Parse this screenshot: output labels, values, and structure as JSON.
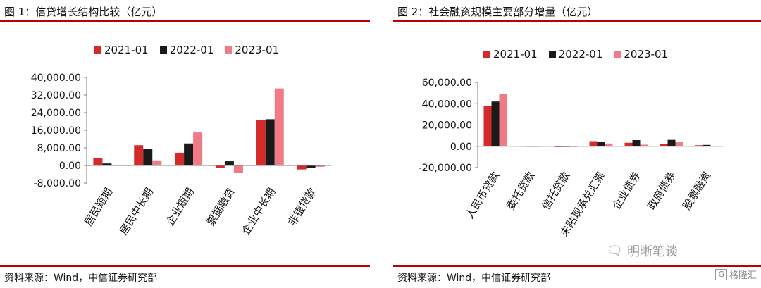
{
  "left_panel": {
    "title": "图 1：信贷增长结构比较（亿元）",
    "source": "资料来源：Wind，中信证券研究部"
  },
  "right_panel": {
    "title": "图 2：社会融资规模主要部分增量（亿元）",
    "source": "资料来源：Wind，中信证券研究部"
  },
  "watermark": {
    "text": "明晰笔谈",
    "icon": "wechat-icon"
  },
  "corner_logo": {
    "text": "格隆汇",
    "icon": "gelonghui-logo-icon"
  },
  "colors": {
    "s2021": "#d42a2a",
    "s2022": "#1a1a1a",
    "s2023": "#f07a86",
    "rule": "#c00000",
    "axis": "#7f7f7f"
  },
  "chart_data": [
    {
      "type": "bar",
      "categories": [
        "居民短期",
        "居民中长期",
        "企业短期",
        "票据融资",
        "企业中长期",
        "非银贷款"
      ],
      "series": [
        {
          "name": "2021-01",
          "values": [
            3400,
            9200,
            5800,
            -1200,
            20500,
            -1800
          ]
        },
        {
          "name": "2022-01",
          "values": [
            900,
            7400,
            10000,
            1900,
            21000,
            -1200
          ]
        },
        {
          "name": "2023-01",
          "values": [
            300,
            2300,
            15000,
            -3500,
            35000,
            -600
          ]
        }
      ],
      "yticks": [
        "40,000.00",
        "32,000.00",
        "24,000.00",
        "16,000.00",
        "8,000.00",
        "0.00",
        "-8,000.00"
      ],
      "ylim": [
        -8000,
        40000
      ],
      "legend_position": "top"
    },
    {
      "type": "bar",
      "categories": [
        "人民币贷款",
        "委托贷款",
        "信托贷款",
        "未贴现承兑汇票",
        "企业债券",
        "政府债券",
        "股票融资"
      ],
      "series": [
        {
          "name": "2021-01",
          "values": [
            38000,
            300,
            -700,
            4800,
            3300,
            2400,
            1000
          ]
        },
        {
          "name": "2022-01",
          "values": [
            42000,
            200,
            -500,
            4300,
            5800,
            6000,
            1300
          ]
        },
        {
          "name": "2023-01",
          "values": [
            49000,
            100,
            -600,
            2600,
            1500,
            4200,
            500
          ]
        }
      ],
      "yticks": [
        "60,000.00",
        "40,000.00",
        "20,000.00",
        "0.00",
        "-20,000.00"
      ],
      "ylim": [
        -20000,
        60000
      ],
      "legend_position": "top"
    }
  ]
}
